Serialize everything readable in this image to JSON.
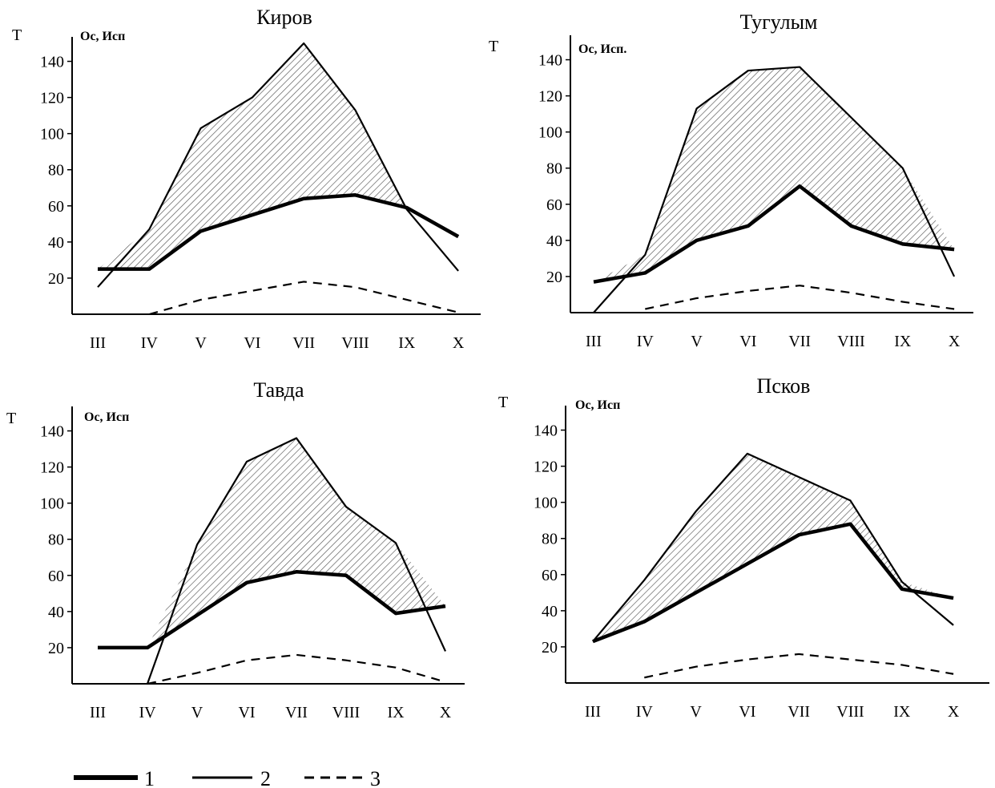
{
  "legend": [
    {
      "label": "1",
      "style": "thick-solid"
    },
    {
      "label": "2",
      "style": "thin-solid"
    },
    {
      "label": "3",
      "style": "dashed"
    }
  ],
  "colors": {
    "line": "#000000",
    "hatch": "#555555",
    "background": "#ffffff"
  },
  "chart_data": [
    {
      "type": "line",
      "title": "Киров",
      "ylabel": "Т",
      "ylabel2": "Ос, Исп",
      "categories": [
        "III",
        "IV",
        "V",
        "VI",
        "VII",
        "VIII",
        "IX",
        "X"
      ],
      "yticks": [
        20,
        40,
        60,
        80,
        100,
        120,
        140
      ],
      "ylim": [
        0,
        150
      ],
      "shaded_between": [
        "2",
        "1"
      ],
      "series": [
        {
          "name": "1",
          "values": [
            25,
            25,
            46,
            55,
            64,
            66,
            59,
            43
          ]
        },
        {
          "name": "2",
          "values": [
            15,
            47,
            103,
            120,
            150,
            113,
            58,
            24
          ]
        },
        {
          "name": "3",
          "values": [
            null,
            0,
            8,
            13,
            18,
            15,
            8,
            1
          ]
        }
      ]
    },
    {
      "type": "line",
      "title": "Тугулым",
      "ylabel": "Т",
      "ylabel2": "Ос, Исп.",
      "categories": [
        "III",
        "IV",
        "V",
        "VI",
        "VII",
        "VIII",
        "IX",
        "X"
      ],
      "yticks": [
        20,
        40,
        60,
        80,
        100,
        120,
        140
      ],
      "ylim": [
        0,
        150
      ],
      "shaded_between": [
        "2",
        "1"
      ],
      "series": [
        {
          "name": "1",
          "values": [
            17,
            22,
            40,
            48,
            70,
            48,
            38,
            35
          ]
        },
        {
          "name": "2",
          "values": [
            0,
            32,
            113,
            134,
            136,
            108,
            80,
            20
          ]
        },
        {
          "name": "3",
          "values": [
            null,
            2,
            8,
            12,
            15,
            11,
            6,
            2
          ]
        }
      ]
    },
    {
      "type": "line",
      "title": "Тавда",
      "ylabel": "Т",
      "ylabel2": "Ос, Исп",
      "categories": [
        "III",
        "IV",
        "V",
        "VI",
        "VII",
        "VIII",
        "IX",
        "X"
      ],
      "yticks": [
        20,
        40,
        60,
        80,
        100,
        120,
        140
      ],
      "ylim": [
        0,
        150
      ],
      "shaded_between": [
        "2",
        "1"
      ],
      "series": [
        {
          "name": "1",
          "values": [
            20,
            20,
            38,
            56,
            62,
            60,
            39,
            43
          ]
        },
        {
          "name": "2",
          "values": [
            null,
            0,
            77,
            123,
            136,
            98,
            78,
            18
          ]
        },
        {
          "name": "3",
          "values": [
            null,
            0,
            6,
            13,
            16,
            13,
            9,
            1
          ]
        }
      ]
    },
    {
      "type": "line",
      "title": "Псков",
      "ylabel": "Т",
      "ylabel2": "Ос, Исп",
      "categories": [
        "III",
        "IV",
        "V",
        "VI",
        "VII",
        "VIII",
        "IX",
        "X"
      ],
      "yticks": [
        20,
        40,
        60,
        80,
        100,
        120,
        140
      ],
      "ylim": [
        0,
        150
      ],
      "shaded_between": [
        "2",
        "1"
      ],
      "series": [
        {
          "name": "1",
          "values": [
            23,
            34,
            50,
            66,
            82,
            88,
            52,
            47
          ]
        },
        {
          "name": "2",
          "values": [
            23,
            57,
            95,
            127,
            114,
            101,
            56,
            32
          ]
        },
        {
          "name": "3",
          "values": [
            null,
            3,
            9,
            13,
            16,
            13,
            10,
            5
          ]
        }
      ]
    }
  ]
}
